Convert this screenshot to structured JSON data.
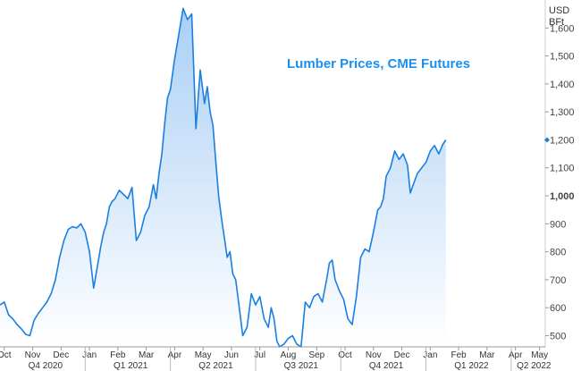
{
  "chart_data": {
    "type": "area",
    "title": "Lumber Prices, CME Futures",
    "unit_line1": "USD",
    "unit_line2": "BFt",
    "ylim": [
      460,
      1700
    ],
    "xlim": [
      0,
      19.2
    ],
    "y_ticks": [
      {
        "value": 500,
        "label": "500"
      },
      {
        "value": 600,
        "label": "600"
      },
      {
        "value": 700,
        "label": "700"
      },
      {
        "value": 800,
        "label": "800"
      },
      {
        "value": 900,
        "label": "900"
      },
      {
        "value": 1000,
        "label": "1,000"
      },
      {
        "value": 1100,
        "label": "1,100"
      },
      {
        "value": 1200,
        "label": "1,200"
      },
      {
        "value": 1300,
        "label": "1,300"
      },
      {
        "value": 1400,
        "label": "1,400"
      },
      {
        "value": 1500,
        "label": "1,500"
      },
      {
        "value": 1600,
        "label": "1,600"
      }
    ],
    "month_ticks": [
      {
        "value": 0.15,
        "label": "Oct"
      },
      {
        "value": 1.15,
        "label": "Nov"
      },
      {
        "value": 2.15,
        "label": "Dec"
      },
      {
        "value": 3.15,
        "label": "Jan"
      },
      {
        "value": 4.15,
        "label": "Feb"
      },
      {
        "value": 5.15,
        "label": "Mar"
      },
      {
        "value": 6.15,
        "label": "Apr"
      },
      {
        "value": 7.15,
        "label": "May"
      },
      {
        "value": 8.15,
        "label": "Jun"
      },
      {
        "value": 9.15,
        "label": "Jul"
      },
      {
        "value": 10.15,
        "label": "Aug"
      },
      {
        "value": 11.15,
        "label": "Sep"
      },
      {
        "value": 12.15,
        "label": "Oct"
      },
      {
        "value": 13.15,
        "label": "Nov"
      },
      {
        "value": 14.15,
        "label": "Dec"
      },
      {
        "value": 15.15,
        "label": "Jan"
      },
      {
        "value": 16.15,
        "label": "Feb"
      },
      {
        "value": 17.15,
        "label": "Mar"
      },
      {
        "value": 18.15,
        "label": "Apr"
      },
      {
        "value": 19.0,
        "label": "May"
      }
    ],
    "quarter_ticks": [
      {
        "value": 1.6,
        "label": "Q4 2020"
      },
      {
        "value": 4.6,
        "label": "Q1 2021"
      },
      {
        "value": 7.6,
        "label": "Q2 2021"
      },
      {
        "value": 10.6,
        "label": "Q3 2021"
      },
      {
        "value": 13.6,
        "label": "Q4 2021"
      },
      {
        "value": 16.6,
        "label": "Q1 2022"
      },
      {
        "value": 18.8,
        "label": "Q2 2022"
      }
    ],
    "quarter_dividers": [
      3.0,
      6.0,
      9.0,
      12.0,
      15.0,
      18.0
    ],
    "last_value": 1200,
    "colors": {
      "line": "#1a7fe0",
      "fill_top": "#a9cff6",
      "fill_bottom": "#ffffff",
      "title": "#1a8ff0",
      "marker": "#1a7fe0"
    },
    "series": [
      {
        "x": [
          0,
          0.15,
          0.3,
          0.45,
          0.6,
          0.75,
          0.9,
          1.05,
          1.2,
          1.35,
          1.5,
          1.65,
          1.8,
          1.95,
          2.1,
          2.25,
          2.4,
          2.55,
          2.7,
          2.85,
          3.0,
          3.15,
          3.3,
          3.45,
          3.55,
          3.65,
          3.75,
          3.85,
          3.95,
          4.05,
          4.2,
          4.35,
          4.5,
          4.65,
          4.8,
          4.95,
          5.1,
          5.25,
          5.4,
          5.5,
          5.6,
          5.7,
          5.8,
          5.9,
          6.0,
          6.15,
          6.3,
          6.45,
          6.6,
          6.75,
          6.9,
          7.05,
          7.2,
          7.3,
          7.4,
          7.5,
          7.6,
          7.7,
          7.8,
          7.9,
          8.0,
          8.1,
          8.2,
          8.3,
          8.4,
          8.55,
          8.7,
          8.85,
          9.0,
          9.15,
          9.3,
          9.45,
          9.55,
          9.65,
          9.75,
          9.85,
          10.0,
          10.15,
          10.3,
          10.45,
          10.6,
          10.75,
          10.9,
          11.05,
          11.2,
          11.35,
          11.5,
          11.6,
          11.7,
          11.8,
          11.95,
          12.1,
          12.25,
          12.4,
          12.55,
          12.7,
          12.85,
          13.0,
          13.15,
          13.3,
          13.4,
          13.5,
          13.6,
          13.75,
          13.9,
          14.05,
          14.2,
          14.35,
          14.45,
          14.55,
          14.7,
          14.85,
          15.0,
          15.15,
          15.3,
          15.45,
          15.6,
          15.7
        ],
        "y": [
          610,
          620,
          575,
          560,
          540,
          525,
          505,
          500,
          555,
          580,
          600,
          620,
          650,
          700,
          780,
          840,
          880,
          890,
          885,
          900,
          870,
          800,
          670,
          760,
          820,
          870,
          900,
          960,
          980,
          990,
          1020,
          1005,
          990,
          1030,
          840,
          870,
          930,
          960,
          1040,
          990,
          1080,
          1150,
          1260,
          1350,
          1380,
          1490,
          1580,
          1670,
          1630,
          1650,
          1240,
          1450,
          1330,
          1390,
          1300,
          1250,
          1120,
          1000,
          920,
          850,
          780,
          800,
          720,
          700,
          620,
          500,
          530,
          650,
          610,
          640,
          560,
          530,
          600,
          560,
          480,
          460,
          470,
          490,
          500,
          470,
          460,
          620,
          600,
          640,
          650,
          620,
          700,
          760,
          770,
          700,
          660,
          630,
          560,
          540,
          640,
          780,
          810,
          800,
          870,
          950,
          960,
          990,
          1070,
          1100,
          1160,
          1130,
          1150,
          1110,
          1010,
          1040,
          1080,
          1100,
          1120,
          1160,
          1180,
          1150,
          1185,
          1200
        ]
      }
    ]
  }
}
